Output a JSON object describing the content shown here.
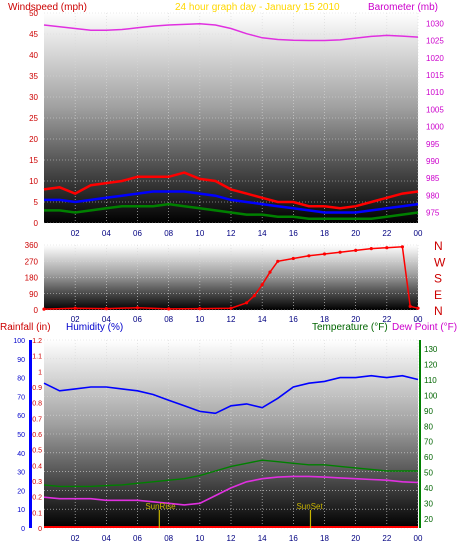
{
  "header": {
    "left_label": "Windspeed (mph)",
    "center_label": "24 hour graph day - January 15 2010",
    "right_label": "Barometer (mb)"
  },
  "colors": {
    "wind_max": "#ff0000",
    "wind_avg": "#0000ff",
    "wind_min": "#008000",
    "barometer": "#e030e0",
    "direction": "#ff0000",
    "humidity": "#0000ff",
    "temperature": "#008000",
    "dewpoint": "#e030e0",
    "rain": "#ff0000",
    "title": "#ffd700",
    "sun_marker": "#c8b400"
  },
  "x_axis": {
    "ticks": [
      "02",
      "04",
      "06",
      "08",
      "10",
      "12",
      "14",
      "16",
      "18",
      "20",
      "22",
      "00"
    ]
  },
  "chart_data": [
    {
      "type": "line",
      "title": "24 hour graph day - January 15 2010",
      "ylabel": "Windspeed (mph)",
      "y2label": "Barometer (mb)",
      "ylim": [
        0,
        50
      ],
      "y_ticks": [
        0,
        5,
        10,
        15,
        20,
        25,
        30,
        35,
        40,
        45,
        50
      ],
      "y2lim": [
        972,
        1033
      ],
      "y2_ticks": [
        975,
        980,
        985,
        990,
        995,
        1000,
        1005,
        1010,
        1015,
        1020,
        1025,
        1030
      ],
      "x": [
        0,
        1,
        2,
        3,
        4,
        5,
        6,
        7,
        8,
        9,
        10,
        11,
        12,
        13,
        14,
        15,
        16,
        17,
        18,
        19,
        20,
        21,
        22,
        23,
        24
      ],
      "series": [
        {
          "name": "barometer",
          "axis": "right",
          "values": [
            1029.5,
            1029,
            1028.5,
            1028,
            1028,
            1028.2,
            1028.7,
            1029.2,
            1029.5,
            1029.7,
            1029.9,
            1029.5,
            1028.5,
            1027,
            1025.8,
            1025.3,
            1025.1,
            1025,
            1025,
            1025.2,
            1025.7,
            1026.2,
            1026.5,
            1026.3,
            1026
          ]
        },
        {
          "name": "wind_max",
          "axis": "left",
          "values": [
            8,
            8.5,
            7,
            9,
            9.5,
            10,
            11,
            11,
            11,
            12,
            10.5,
            10,
            8,
            7,
            6,
            5,
            5,
            4,
            4,
            3.5,
            4,
            5,
            6,
            7,
            7.5
          ]
        },
        {
          "name": "wind_avg",
          "axis": "left",
          "values": [
            5.5,
            5.5,
            5,
            5.5,
            6,
            6.5,
            7,
            7.5,
            7.5,
            7.5,
            7,
            6.5,
            5.5,
            5,
            4.5,
            4,
            3.5,
            3,
            2.5,
            2.5,
            2.5,
            3,
            3.5,
            4,
            4.5
          ]
        },
        {
          "name": "wind_min",
          "axis": "left",
          "values": [
            3,
            3,
            2.5,
            3,
            3.5,
            4,
            4,
            4,
            4.5,
            4,
            3.5,
            3,
            2.5,
            2,
            2,
            1.5,
            1.5,
            1,
            1,
            1,
            1,
            1,
            1.5,
            2,
            2.5
          ]
        }
      ]
    },
    {
      "type": "scatter",
      "title": "",
      "ylabel": "",
      "ylim": [
        0,
        360
      ],
      "y_ticks": [
        0,
        90,
        180,
        270,
        360
      ],
      "compass": [
        "N",
        "W",
        "S",
        "E",
        "N"
      ],
      "x": [
        0,
        2,
        4,
        6,
        8,
        10,
        12,
        13,
        13.5,
        14,
        14.5,
        15,
        16,
        17,
        18,
        19,
        20,
        21,
        22,
        23,
        23.5,
        24
      ],
      "series": [
        {
          "name": "wind_direction",
          "values": [
            5,
            10,
            8,
            12,
            6,
            8,
            10,
            40,
            80,
            140,
            210,
            270,
            285,
            300,
            310,
            320,
            330,
            340,
            345,
            350,
            20,
            10
          ]
        }
      ]
    },
    {
      "type": "line",
      "title": "",
      "ylabel": "Humidity (%)",
      "y_rain_label": "Rainfall (in)",
      "y2label": "Temperature (°F)",
      "y3label": "Dew Point (°F)",
      "hum_lim": [
        0,
        100
      ],
      "hum_ticks": [
        0,
        10,
        20,
        30,
        40,
        50,
        60,
        70,
        80,
        90,
        100
      ],
      "rain_lim": [
        0,
        1.2
      ],
      "rain_ticks": [
        "0",
        "0.1",
        "0.2",
        "0.3",
        "0.4",
        "0.5",
        "0.6",
        "0.7",
        "0.8",
        "0.9",
        "1",
        "1.1",
        "1.2"
      ],
      "temp_lim": [
        14,
        136
      ],
      "temp_ticks": [
        20,
        30,
        40,
        50,
        60,
        70,
        80,
        90,
        100,
        110,
        120,
        130
      ],
      "x": [
        0,
        1,
        2,
        3,
        4,
        5,
        6,
        7,
        8,
        9,
        10,
        11,
        12,
        13,
        14,
        15,
        16,
        17,
        18,
        19,
        20,
        21,
        22,
        23,
        24
      ],
      "series": [
        {
          "name": "humidity",
          "axis": "humidity",
          "values": [
            77,
            73,
            74,
            75,
            75,
            74,
            73,
            71,
            68,
            65,
            62,
            61,
            65,
            66,
            64,
            69,
            75,
            77,
            78,
            80,
            80,
            81,
            80,
            81,
            79
          ]
        },
        {
          "name": "temperature",
          "axis": "temperature",
          "values": [
            42,
            41,
            41,
            41,
            41.5,
            42,
            43,
            44,
            45,
            46,
            48,
            51,
            54,
            56,
            58,
            57,
            56,
            55,
            55,
            54,
            53,
            52,
            51,
            51,
            51
          ]
        },
        {
          "name": "dewpoint",
          "axis": "temperature",
          "values": [
            34,
            33,
            33,
            33,
            32,
            32,
            32,
            31,
            30,
            29,
            30,
            35,
            40,
            44,
            46,
            47,
            47.5,
            47.5,
            47,
            46.5,
            46,
            45.5,
            45,
            44,
            43.5
          ]
        },
        {
          "name": "rainfall",
          "axis": "rain",
          "values": [
            0,
            0,
            0,
            0,
            0,
            0,
            0,
            0,
            0,
            0,
            0,
            0,
            0,
            0,
            0,
            0,
            0,
            0,
            0,
            0,
            0,
            0,
            0,
            0,
            0
          ]
        }
      ],
      "annotations": [
        {
          "label": "SunRise",
          "x": 7.4
        },
        {
          "label": "SunSet",
          "x": 17.1
        }
      ]
    }
  ]
}
